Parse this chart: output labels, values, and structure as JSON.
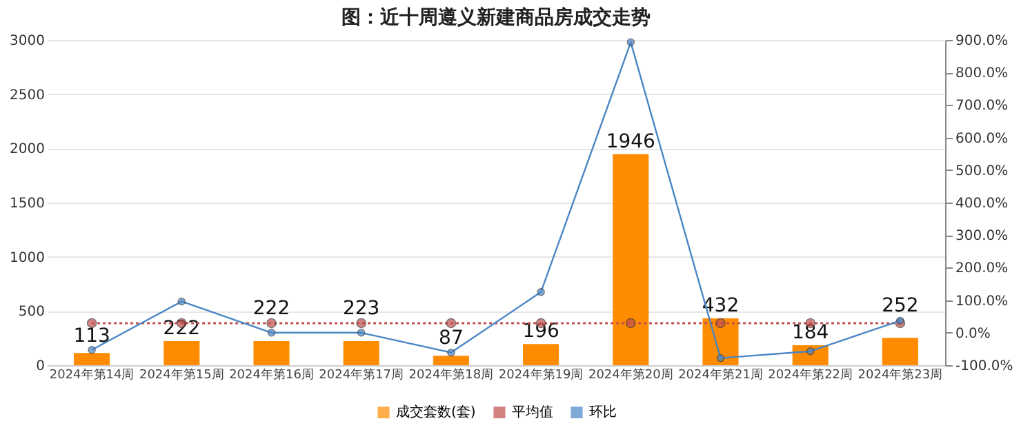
{
  "chart_data": {
    "type": "bar",
    "title": "图：近十周遵义新建商品房成交走势",
    "categories": [
      "2024年第14周",
      "2024年第15周",
      "2024年第16周",
      "2024年第17周",
      "2024年第18周",
      "2024年第19周",
      "2024年第20周",
      "2024年第21周",
      "2024年第22周",
      "2024年第23周"
    ],
    "series": [
      {
        "name": "成交套数(套)",
        "color": "#ff8c00",
        "values": [
          113,
          222,
          222,
          223,
          87,
          196,
          1946,
          432,
          184,
          252
        ],
        "value_labels": [
          "113",
          "222",
          "222",
          "223",
          "87",
          "196",
          "1946",
          "432",
          "184",
          "252"
        ]
      },
      {
        "name": "平均值",
        "type": "line",
        "color": "#c0504d",
        "line_style": "dotted",
        "marker": "circle",
        "values": [
          388,
          388,
          388,
          388,
          388,
          388,
          388,
          388,
          388,
          388
        ]
      },
      {
        "name": "环比",
        "type": "line",
        "axis": "y2",
        "color": "#4a86c5",
        "line_style": "solid",
        "marker": "circle",
        "values": [
          -53,
          96,
          0,
          0,
          -61,
          125,
          893,
          -78,
          -57,
          37
        ]
      }
    ],
    "ylim": [
      0,
      3000
    ],
    "yticks": [
      0,
      500,
      1000,
      1500,
      2000,
      2500,
      3000
    ],
    "y2lim": [
      -100,
      900
    ],
    "y2ticks": [
      {
        "value": -100,
        "label": "-100.0%"
      },
      {
        "value": 0,
        "label": "0.0%"
      },
      {
        "value": 100,
        "label": "100.0%"
      },
      {
        "value": 200,
        "label": "200.0%"
      },
      {
        "value": 300,
        "label": "300.0%"
      },
      {
        "value": 400,
        "label": "400.0%"
      },
      {
        "value": 500,
        "label": "500.0%"
      },
      {
        "value": 600,
        "label": "600.0%"
      },
      {
        "value": 700,
        "label": "700.0%"
      },
      {
        "value": 800,
        "label": "800.0%"
      },
      {
        "value": 900,
        "label": "900.0%"
      }
    ],
    "grid": "y",
    "legend": "bottom"
  }
}
